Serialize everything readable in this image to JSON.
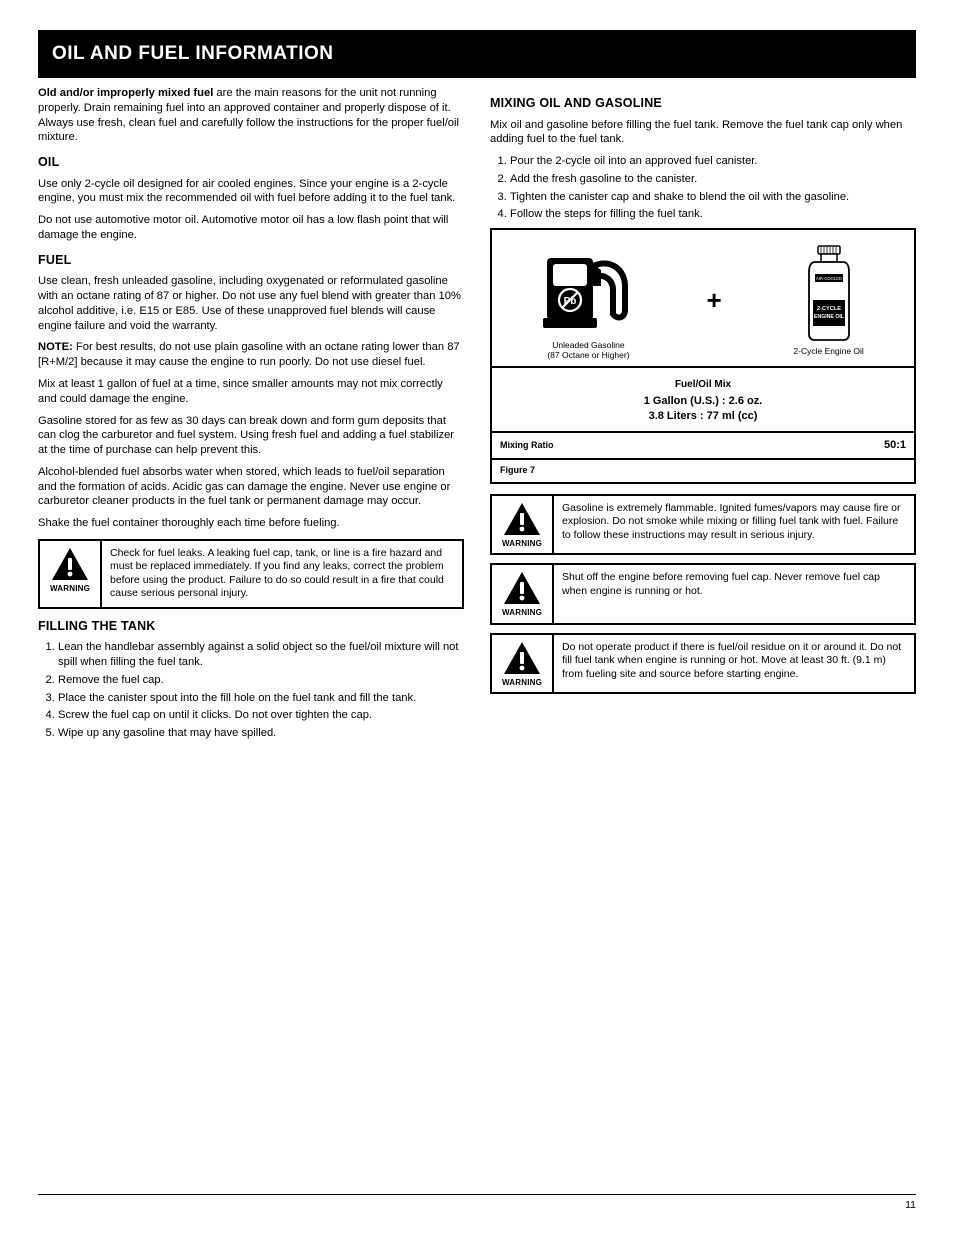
{
  "header": {
    "title": "OIL AND FUEL INFORMATION"
  },
  "left": {
    "p1_lead": "Old and/or improperly mixed fuel",
    "p1_rest": " are the main reasons for the unit not running properly. Drain remaining fuel into an approved container and properly dispose of it. Always use fresh, clean fuel and carefully follow the instructions for the proper fuel/oil mixture.",
    "oil_title": "OIL",
    "oil_p1": "Use only 2-cycle oil designed for air cooled engines. Since your engine is a 2-cycle engine, you must mix the recommended oil with fuel before adding it to the fuel tank.",
    "oil_p2": "Do not use automotive motor oil. Automotive motor oil has a low flash point that will damage the engine.",
    "fuel_title": "FUEL",
    "fuel_p1": "Use clean, fresh unleaded gasoline, including oxygenated or reformulated gasoline with an octane rating of 87 or higher. Do not use any fuel blend with greater than 10% alcohol additive, i.e. E15 or E85. Use of these unapproved fuel blends will cause engine failure and void the warranty.",
    "note": "NOTE:",
    "fuel_p2": " For best results, do not use plain gasoline with an octane rating lower than 87 [R+M/2] because it may cause the engine to run poorly. Do not use diesel fuel.",
    "fuel_p3": "Mix at least 1 gallon of fuel at a time, since smaller amounts may not mix correctly and could damage the engine.",
    "fuel_p4": "Gasoline stored for as few as 30 days can break down and form gum deposits that can clog the carburetor and fuel system. Using fresh fuel and adding a fuel stabilizer at the time of purchase can help prevent this.",
    "fuel_p5": "Alcohol-blended fuel absorbs water when stored, which leads to fuel/oil separation and the formation of acids. Acidic gas can damage the engine. Never use engine or carburetor cleaner products in the fuel tank or permanent damage may occur.",
    "fuel_p6": "Shake the fuel container thoroughly each time before fueling.",
    "warn1": {
      "label": "WARNING",
      "text": "Check for fuel leaks. A leaking fuel cap, tank, or line is a fire hazard and must be replaced immediately. If you find any leaks, correct the problem before using the product. Failure to do so could result in a fire that could cause serious personal injury."
    },
    "fill_title": "FILLING THE TANK",
    "fill_steps": [
      "Lean the handlebar assembly against a solid object so the fuel/oil mixture will not spill when filling the fuel tank.",
      "Remove the fuel cap.",
      "Place the canister spout into the fill hole on the fuel tank and fill the tank.",
      "Screw the fuel cap on until it clicks. Do not over tighten the cap.",
      "Wipe up any gasoline that may have spilled."
    ]
  },
  "right": {
    "mix_title": "MIXING OIL AND GASOLINE",
    "mix_p1": "Mix oil and gasoline before filling the fuel tank. Remove the fuel tank cap only when adding fuel to the fuel tank.",
    "mix_steps": [
      "Pour the 2-cycle oil into an approved fuel canister.",
      "Add the fresh gasoline to the canister.",
      "Tighten the canister cap and shake to blend the oil with the gasoline.",
      "Follow the steps for filling the fuel tank."
    ],
    "diagram": {
      "pump_label": "Unleaded Gasoline\n(87 Octane or Higher)",
      "plus": "+",
      "bottle_cap_text": "AIR-COOLED",
      "bottle_body_text": "2-CYCLE\nENGINE OIL",
      "bottle_label": "2-Cycle Engine Oil",
      "mix_label": "Fuel/Oil Mix",
      "mix_value_us": "1 Gallon (U.S.) : 2.6 oz.",
      "mix_value_metric": "3.8 Liters : 77 ml (cc)",
      "ratio_label": "Mixing Ratio",
      "ratio_value": "50:1",
      "figure": "Figure 7"
    },
    "warn2": {
      "label": "WARNING",
      "text": "Gasoline is extremely flammable. Ignited fumes/vapors may cause fire or explosion. Do not smoke while mixing or filling fuel tank with fuel. Failure to follow these instructions may result in serious injury."
    },
    "warn3": {
      "label": "WARNING",
      "text": "Shut off the engine before removing fuel cap. Never remove fuel cap when engine is running or hot."
    },
    "warn4": {
      "label": "WARNING",
      "text": "Do not operate product if there is fuel/oil residue on it or around it. Do not fill fuel tank when engine is running or hot. Move at least 30 ft. (9.1 m) from fueling site and source before starting engine."
    }
  },
  "footer": {
    "page": "11"
  },
  "colors": {
    "black": "#000000",
    "white": "#ffffff"
  }
}
